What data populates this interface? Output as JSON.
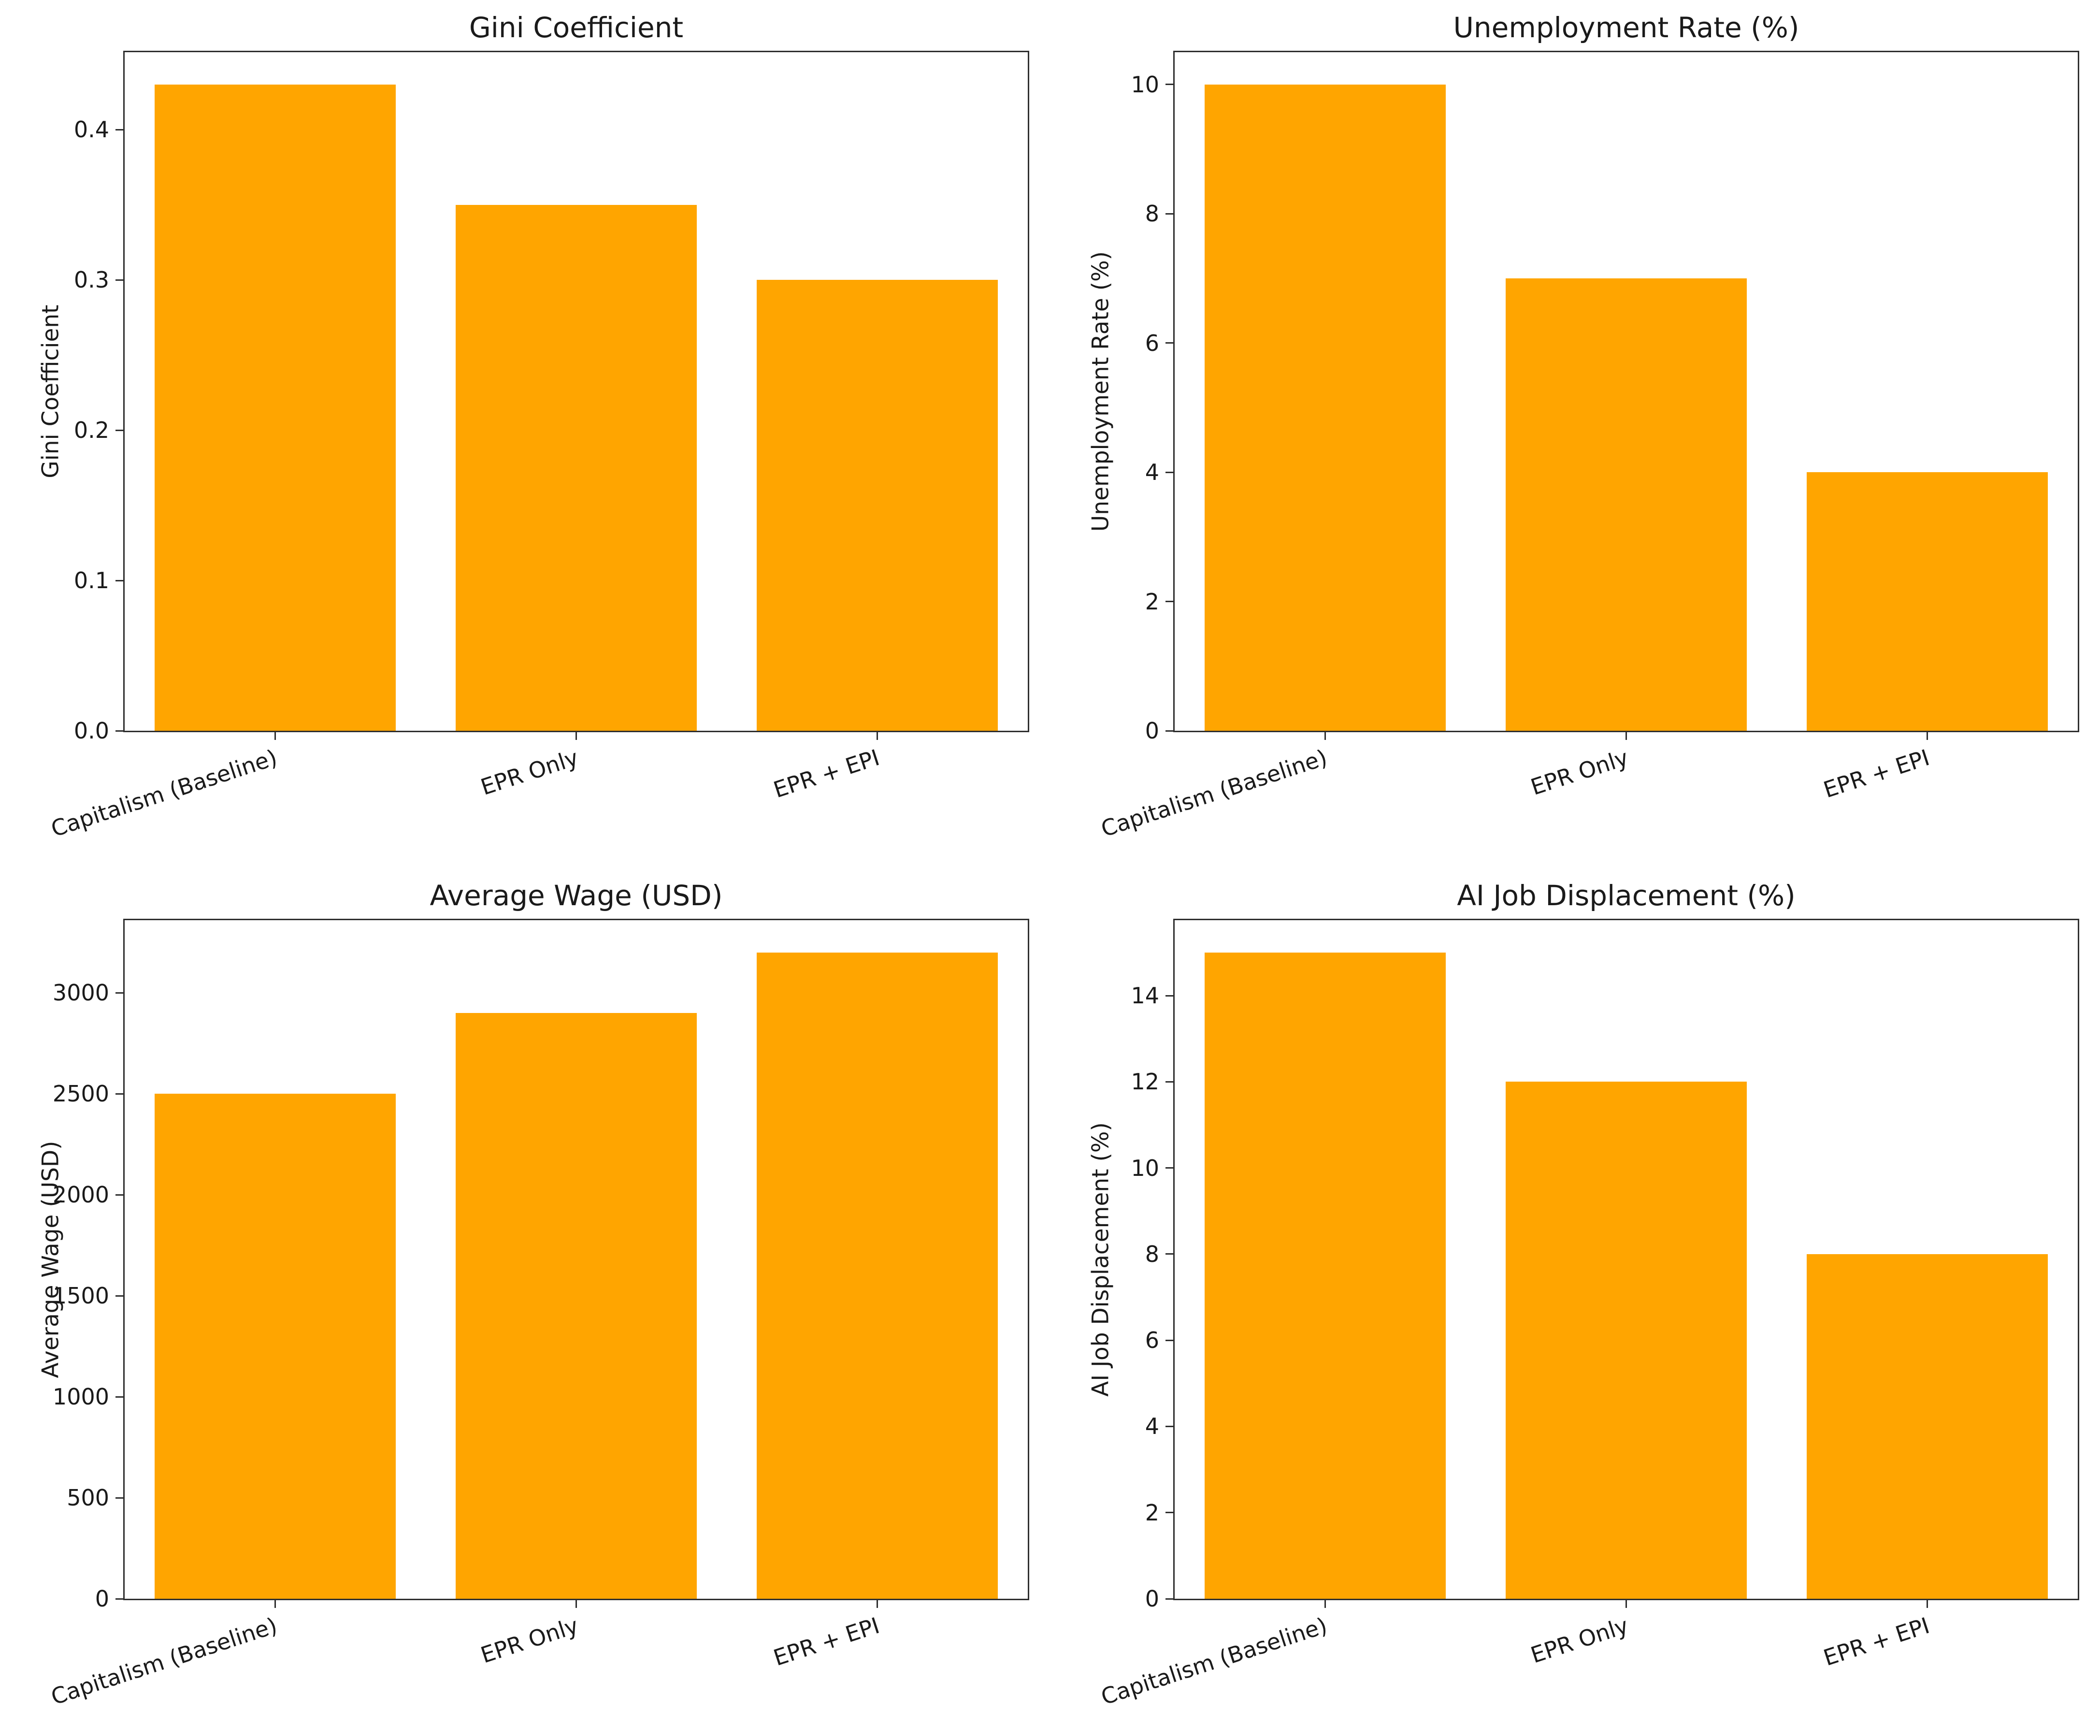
{
  "figure": {
    "background": "#ffffff"
  },
  "colors": {
    "bar": "#FFA500",
    "spine": "#2e2e2e",
    "text": "#1a1a1a"
  },
  "categories": [
    "Capitalism (Baseline)",
    "EPR Only",
    "EPR + EPI"
  ],
  "chart_data": [
    {
      "type": "bar",
      "title": "Gini Coefficient",
      "ylabel": "Gini Coefficient",
      "xlabel": "",
      "categories": [
        "Capitalism (Baseline)",
        "EPR Only",
        "EPR + EPI"
      ],
      "values": [
        0.43,
        0.35,
        0.3
      ],
      "ylim": [
        0,
        0.4515
      ],
      "yticks": [
        0,
        0.1,
        0.2,
        0.3,
        0.4
      ],
      "ytick_labels": [
        "0.0",
        "0.1",
        "0.2",
        "0.3",
        "0.4"
      ],
      "grid": false,
      "legend": null,
      "bar_color": "#FFA500"
    },
    {
      "type": "bar",
      "title": "Unemployment Rate (%)",
      "ylabel": "Unemployment Rate (%)",
      "xlabel": "",
      "categories": [
        "Capitalism (Baseline)",
        "EPR Only",
        "EPR + EPI"
      ],
      "values": [
        10,
        7,
        4
      ],
      "ylim": [
        0,
        10.5
      ],
      "yticks": [
        0,
        2,
        4,
        6,
        8,
        10
      ],
      "ytick_labels": [
        "0",
        "2",
        "4",
        "6",
        "8",
        "10"
      ],
      "grid": false,
      "legend": null,
      "bar_color": "#FFA500"
    },
    {
      "type": "bar",
      "title": "Average Wage (USD)",
      "ylabel": "Average Wage (USD)",
      "xlabel": "",
      "categories": [
        "Capitalism (Baseline)",
        "EPR Only",
        "EPR + EPI"
      ],
      "values": [
        2500,
        2900,
        3200
      ],
      "ylim": [
        0,
        3360
      ],
      "yticks": [
        0,
        500,
        1000,
        1500,
        2000,
        2500,
        3000
      ],
      "ytick_labels": [
        "0",
        "500",
        "1000",
        "1500",
        "2000",
        "2500",
        "3000"
      ],
      "grid": false,
      "legend": null,
      "bar_color": "#FFA500"
    },
    {
      "type": "bar",
      "title": "AI Job Displacement (%)",
      "ylabel": "AI Job Displacement (%)",
      "xlabel": "",
      "categories": [
        "Capitalism (Baseline)",
        "EPR Only",
        "EPR + EPI"
      ],
      "values": [
        15,
        12,
        8
      ],
      "ylim": [
        0,
        15.75
      ],
      "yticks": [
        0,
        2,
        4,
        6,
        8,
        10,
        12,
        14
      ],
      "ytick_labels": [
        "0",
        "2",
        "4",
        "6",
        "8",
        "10",
        "12",
        "14"
      ],
      "grid": false,
      "legend": null,
      "bar_color": "#FFA500"
    }
  ]
}
